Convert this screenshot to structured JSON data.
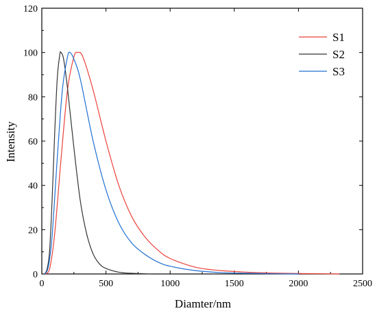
{
  "chart_data": {
    "type": "line",
    "title": "",
    "xlabel": "Diamter/nm",
    "ylabel": "Intensity",
    "xlim": [
      0,
      2500
    ],
    "ylim": [
      0,
      120
    ],
    "xticks": [
      0,
      500,
      1000,
      1500,
      2000,
      2500
    ],
    "yticks": [
      0,
      20,
      40,
      60,
      80,
      100,
      120
    ],
    "legend_position": "top-right",
    "grid": false,
    "series": [
      {
        "name": "S1",
        "color": "#e8413a",
        "x": [
          30,
          60,
          100,
          150,
          200,
          250,
          280,
          320,
          400,
          500,
          600,
          700,
          800,
          900,
          1000,
          1200,
          1400,
          1600,
          1800,
          2000,
          2200,
          2320
        ],
        "y": [
          0,
          2,
          18,
          52,
          83,
          98,
          100,
          98,
          83,
          60,
          40,
          26,
          17,
          11,
          7,
          3,
          1.5,
          0.8,
          0.4,
          0.2,
          0.1,
          0
        ]
      },
      {
        "name": "S2",
        "color": "#333333",
        "x": [
          20,
          40,
          60,
          80,
          100,
          120,
          140,
          150,
          170,
          200,
          250,
          300,
          350,
          400,
          450,
          500,
          600,
          700,
          800,
          850
        ],
        "y": [
          0,
          2,
          10,
          33,
          63,
          88,
          99,
          100,
          97,
          84,
          57,
          33,
          18,
          9,
          4.5,
          2.5,
          0.8,
          0.3,
          0.1,
          0
        ]
      },
      {
        "name": "S3",
        "color": "#1f6fd1",
        "x": [
          20,
          50,
          80,
          120,
          160,
          200,
          220,
          250,
          300,
          400,
          500,
          600,
          700,
          800,
          900,
          1000,
          1200,
          1400,
          1600,
          1800,
          2000
        ],
        "y": [
          0,
          3,
          17,
          52,
          83,
          98,
          100,
          97,
          88,
          60,
          38,
          23,
          14,
          9,
          5.5,
          3.5,
          1.5,
          0.6,
          0.3,
          0.1,
          0
        ]
      }
    ]
  }
}
